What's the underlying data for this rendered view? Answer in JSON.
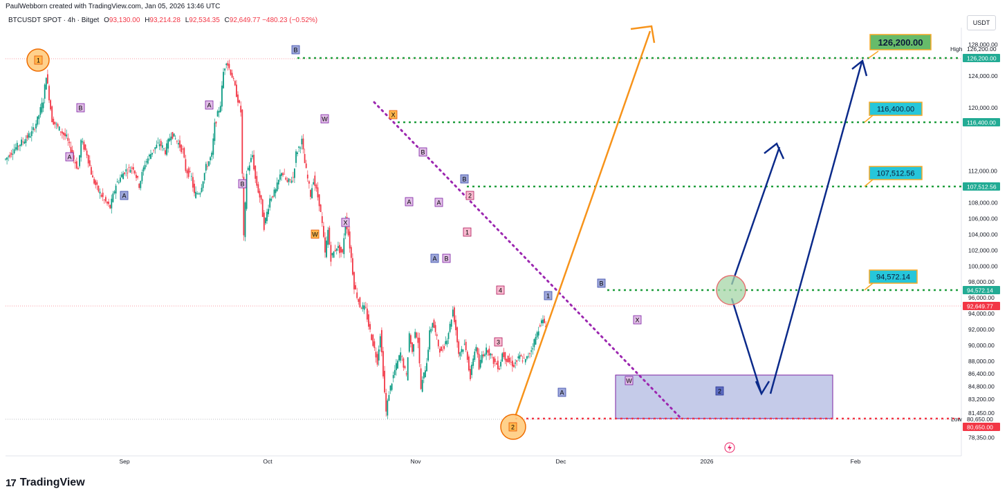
{
  "header": {
    "credit": "PaulWebborn created with TradingView.com, Jan 05, 2026 13:46 UTC"
  },
  "symbol": {
    "name": "BTCUSDT SPOT · 4h · Bitget",
    "open_label": "O",
    "open": "93,130.00",
    "high_label": "H",
    "high": "93,214.28",
    "low_label": "L",
    "low": "92,534.35",
    "close_label": "C",
    "close": "92,649.77",
    "change": "−480.23 (−0.52%)"
  },
  "currency": "USDT",
  "footer": {
    "brand": "TradingView",
    "logo_mark": "17"
  },
  "colors": {
    "up": "#089981",
    "down": "#f23645",
    "target_green": "#1e9d3c",
    "orange": "#f7931a",
    "navy": "#0b2a8a",
    "purple": "#9c27b0",
    "zone_fill": "#9fa8da",
    "label_cyan": "#00bcd4"
  },
  "chart_data": {
    "type": "candlestick",
    "x_ticks": [
      "Sep",
      "Oct",
      "Nov",
      "Dec",
      "2026",
      "Feb"
    ],
    "y_ticks": [
      "128,000.00",
      "126,200.00",
      "124,000.00",
      "120,000.00",
      "116,400.00",
      "112,000.00",
      "108,000.00",
      "106,000.00",
      "104,000.00",
      "102,000.00",
      "100,000.00",
      "98,000.00",
      "96,000.00",
      "94,000.00",
      "92,000.00",
      "90,000.00",
      "88,000.00",
      "86,400.00",
      "84,800.00",
      "83,200.00",
      "81,450.00",
      "80,650.00",
      "78,350.00"
    ],
    "y_tick_values": [
      128000,
      126200,
      124000,
      120000,
      116400,
      112000,
      108000,
      106000,
      104000,
      102000,
      100000,
      98000,
      96000,
      94000,
      92000,
      90000,
      88000,
      86400,
      84800,
      83200,
      81450,
      80650,
      78350
    ],
    "price_path": [
      [
        0,
        113500
      ],
      [
        3,
        114800
      ],
      [
        6,
        115800
      ],
      [
        9,
        116800
      ],
      [
        11,
        118500
      ],
      [
        13,
        121000
      ],
      [
        14,
        124200
      ],
      [
        16,
        118500
      ],
      [
        18,
        117500
      ],
      [
        21,
        116200
      ],
      [
        23,
        114000
      ],
      [
        25,
        112200
      ],
      [
        26,
        115800
      ],
      [
        28,
        114200
      ],
      [
        30,
        111000
      ],
      [
        32,
        109500
      ],
      [
        34,
        108300
      ],
      [
        36,
        107400
      ],
      [
        38,
        110300
      ],
      [
        41,
        112000
      ],
      [
        44,
        112500
      ],
      [
        46,
        110200
      ],
      [
        48,
        113000
      ],
      [
        51,
        114800
      ],
      [
        53,
        115500
      ],
      [
        55,
        114500
      ],
      [
        57,
        116800
      ],
      [
        59,
        115800
      ],
      [
        61,
        114500
      ],
      [
        62,
        112200
      ],
      [
        64,
        111200
      ],
      [
        65,
        109000
      ],
      [
        67,
        109500
      ],
      [
        69,
        112500
      ],
      [
        71,
        114000
      ],
      [
        72,
        117800
      ],
      [
        74,
        120500
      ],
      [
        75,
        124500
      ],
      [
        76,
        126000
      ],
      [
        78,
        124000
      ],
      [
        80,
        121000
      ],
      [
        81,
        119500
      ],
      [
        82,
        103500
      ],
      [
        83,
        111800
      ],
      [
        85,
        114000
      ],
      [
        86,
        111000
      ],
      [
        88,
        108000
      ],
      [
        89,
        105000
      ],
      [
        91,
        108500
      ],
      [
        93,
        109500
      ],
      [
        95,
        112000
      ],
      [
        97,
        110500
      ],
      [
        99,
        111200
      ],
      [
        100,
        114200
      ],
      [
        102,
        115800
      ],
      [
        103,
        113000
      ],
      [
        105,
        109000
      ],
      [
        106,
        111000
      ],
      [
        108,
        108000
      ],
      [
        109,
        105200
      ],
      [
        110,
        101500
      ],
      [
        111,
        104500
      ],
      [
        112,
        101000
      ],
      [
        114,
        102500
      ],
      [
        116,
        101500
      ],
      [
        117,
        106000
      ],
      [
        118,
        104000
      ],
      [
        119,
        101000
      ],
      [
        120,
        97500
      ],
      [
        122,
        95000
      ],
      [
        124,
        94500
      ],
      [
        125,
        92500
      ],
      [
        126,
        91000
      ],
      [
        128,
        88000
      ],
      [
        129,
        91500
      ],
      [
        130,
        86500
      ],
      [
        131,
        81500
      ],
      [
        132,
        84000
      ],
      [
        134,
        86800
      ],
      [
        136,
        89000
      ],
      [
        138,
        86000
      ],
      [
        139,
        91500
      ],
      [
        140,
        89000
      ],
      [
        141,
        92000
      ],
      [
        142,
        90500
      ],
      [
        143,
        84500
      ],
      [
        145,
        88000
      ],
      [
        146,
        91500
      ],
      [
        147,
        93000
      ],
      [
        149,
        90000
      ],
      [
        150,
        89000
      ],
      [
        152,
        91000
      ],
      [
        153,
        92500
      ],
      [
        154,
        94500
      ],
      [
        155,
        92000
      ],
      [
        156,
        89000
      ],
      [
        158,
        90000
      ],
      [
        159,
        88500
      ],
      [
        160,
        85800
      ],
      [
        161,
        88500
      ],
      [
        162,
        90000
      ],
      [
        163,
        87000
      ],
      [
        164,
        88800
      ],
      [
        166,
        89500
      ],
      [
        168,
        88000
      ],
      [
        170,
        87200
      ],
      [
        171,
        89000
      ],
      [
        173,
        88000
      ],
      [
        175,
        87500
      ],
      [
        177,
        88500
      ],
      [
        179,
        88000
      ],
      [
        181,
        89500
      ],
      [
        183,
        91500
      ],
      [
        184,
        92800
      ],
      [
        185,
        93000
      ],
      [
        186,
        92650
      ]
    ]
  },
  "waves": {
    "w1": "1",
    "wB_top": "B",
    "wB1": "B",
    "wA1": "A",
    "wA_low": "A",
    "wA2": "A",
    "wB2": "B",
    "wW": "W",
    "wX1": "X",
    "wX2": "X",
    "wB3": "B",
    "wA3": "A",
    "wA4": "A",
    "wB4": "B",
    "wB5": "B",
    "w2a": "2",
    "w1a": "1",
    "w4": "4",
    "w3": "3",
    "w1b": "1",
    "wA5": "A",
    "wB6": "B",
    "wW2": "W",
    "wX3": "X",
    "w2b": "2",
    "w2_big": "2"
  },
  "targets": {
    "t1": "126,200.00",
    "t2": "116,400.00",
    "t3": "107,512.56",
    "t4": "94,572.14"
  },
  "axis_badges": {
    "high_tag": "High",
    "high_value": "126,200.00",
    "high_value2": "126,200.00",
    "t2_value": "116,400.00",
    "t3_value": "107,512.56",
    "t4_value": "94,572.14",
    "last_value": "92,649.77",
    "low_tag": "Low",
    "low_value": "80,650.00",
    "low_value2": "80,650.00"
  }
}
